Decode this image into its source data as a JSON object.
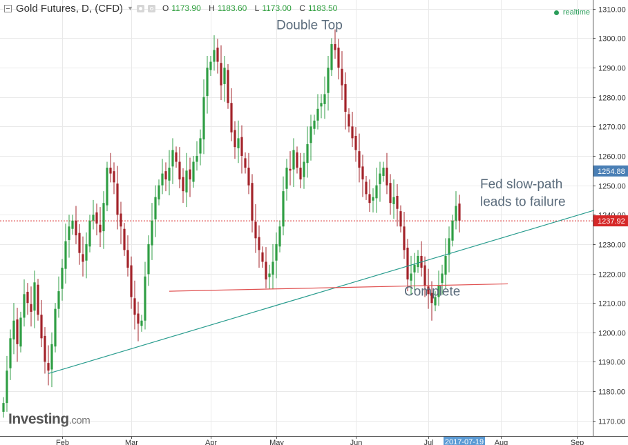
{
  "header": {
    "title": "Gold Futures, D, (CFD)",
    "ohlc": [
      {
        "key": "O",
        "value": "1173.90"
      },
      {
        "key": "H",
        "value": "1183.60"
      },
      {
        "key": "L",
        "value": "1173.00"
      },
      {
        "key": "C",
        "value": "1183.50"
      }
    ],
    "realtime_label": "realtime"
  },
  "logo": {
    "text": "Investing",
    "suffix": ".com"
  },
  "colors": {
    "up": "#2f9e44",
    "down": "#a3232a",
    "trendline": "#2a9d8f",
    "support": "#e05050",
    "grid": "#e9e9e9",
    "price_marker": "#d62828",
    "prev_marker": "#4a7fb5",
    "date_marker": "#5b9bd5"
  },
  "chart_data": {
    "type": "candlestick",
    "title": "Gold Futures, D, (CFD)",
    "x_ticks": [
      {
        "label": "Feb",
        "index": 17
      },
      {
        "label": "Mar",
        "index": 37
      },
      {
        "label": "Apr",
        "index": 60
      },
      {
        "label": "May",
        "index": 79
      },
      {
        "label": "Jun",
        "index": 102
      },
      {
        "label": "Jul",
        "index": 123
      },
      {
        "label": "Aug",
        "index": 144
      },
      {
        "label": "Sep",
        "index": 166
      }
    ],
    "ylim": [
      1165,
      1313
    ],
    "y_ticks": [
      1170,
      1180,
      1190,
      1200,
      1210,
      1220,
      1230,
      1240,
      1250,
      1260,
      1270,
      1280,
      1290,
      1300,
      1310
    ],
    "x_range": [
      0,
      171
    ],
    "current_price": {
      "value": 1237.92,
      "label": "1237.92"
    },
    "prev_marker": {
      "value": 1254.88,
      "label": "1254.88"
    },
    "date_marker": {
      "label": "2017-07-19",
      "index": 133
    },
    "closes": [
      1176,
      1187,
      1198,
      1204,
      1196,
      1205,
      1213,
      1210,
      1207,
      1217,
      1206,
      1198,
      1190,
      1187,
      1196,
      1208,
      1214,
      1222,
      1231,
      1236,
      1238,
      1233,
      1227,
      1224,
      1230,
      1238,
      1240,
      1237,
      1234,
      1244,
      1256,
      1254,
      1251,
      1240,
      1236,
      1228,
      1222,
      1212,
      1206,
      1203,
      1204,
      1219,
      1230,
      1238,
      1246,
      1250,
      1254,
      1252,
      1256,
      1262,
      1258,
      1252,
      1248,
      1255,
      1252,
      1258,
      1260,
      1266,
      1280,
      1290,
      1292,
      1296,
      1292,
      1284,
      1290,
      1278,
      1268,
      1263,
      1266,
      1260,
      1256,
      1250,
      1238,
      1232,
      1228,
      1224,
      1218,
      1220,
      1224,
      1230,
      1236,
      1248,
      1256,
      1255,
      1262,
      1256,
      1252,
      1258,
      1264,
      1270,
      1272,
      1276,
      1278,
      1281,
      1290,
      1298,
      1296,
      1290,
      1284,
      1275,
      1270,
      1266,
      1262,
      1256,
      1252,
      1247,
      1244,
      1246,
      1250,
      1254,
      1256,
      1250,
      1244,
      1246,
      1242,
      1236,
      1228,
      1218,
      1220,
      1223,
      1226,
      1222,
      1216,
      1213,
      1210,
      1212,
      1216,
      1220,
      1226,
      1232,
      1238,
      1243,
      1238
    ],
    "trendline": {
      "start": {
        "index": 13,
        "value": 1186
      },
      "end": {
        "index": 171,
        "value": 1241.5
      }
    },
    "support_line": {
      "start": {
        "index": 48,
        "value": 1214
      },
      "end": {
        "index": 146,
        "value": 1216.5
      }
    },
    "annotations": [
      {
        "text": "Double Top",
        "index": 79,
        "value": 1303
      },
      {
        "text": "Fed slow-path",
        "index": 138,
        "value": 1249
      },
      {
        "text": "leads to failure",
        "index": 138,
        "value": 1243
      },
      {
        "text": "Complete",
        "index": 116,
        "value": 1212.5
      }
    ]
  }
}
